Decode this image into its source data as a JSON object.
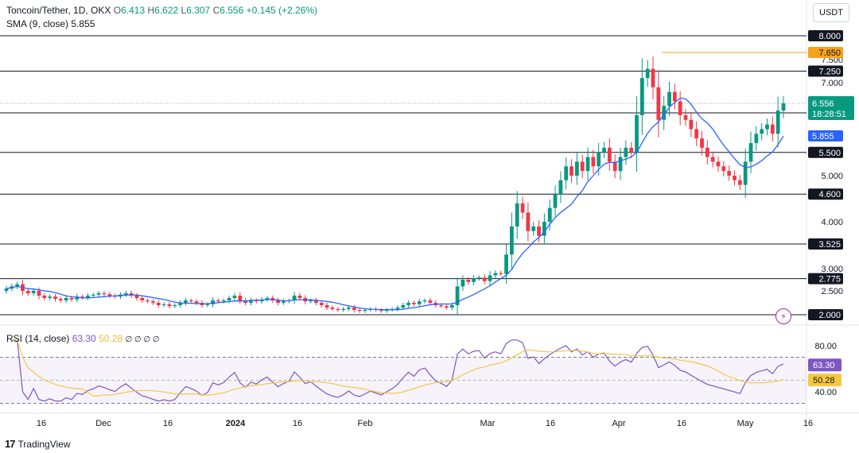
{
  "header": {
    "symbol": "Toncoin/Tether, 1D, OKX",
    "open_label": "O",
    "open": "6.413",
    "high_label": "H",
    "high": "6.622",
    "low_label": "L",
    "low": "6.307",
    "close_label": "C",
    "close": "6.556",
    "change": "+0.145 (+2.26%)",
    "sma_label": "SMA (9, close)",
    "sma_value": "5.855"
  },
  "currency_button": "USDT",
  "rsi_header": {
    "label": "RSI (14, close)",
    "rsi_value": "63.30",
    "ma_value": "50.28",
    "placeholders": "∅ ∅ ∅ ∅"
  },
  "brand": "TradingView",
  "colors": {
    "up": "#089981",
    "down": "#f23645",
    "sma": "#2962ff",
    "rsi": "#7e57c2",
    "rsi_ma": "#f5c842",
    "level_line": "#131722",
    "level_tag_bg": "#131722",
    "highlight_tag_bg": "#f7a21b",
    "price_tag_bg": "#089981"
  },
  "chart_data": [
    {
      "type": "candlestick",
      "title": "Toncoin/Tether, 1D, OKX",
      "y_axis_ticks": [
        "2.500",
        "3.000",
        "4.000",
        "5.000",
        "7.000",
        "7.500"
      ],
      "ylim": [
        1.9,
        8.5
      ],
      "x_ticks": [
        "16",
        "Dec",
        "16",
        "2024",
        "16",
        "Feb",
        "Mar",
        "16",
        "Apr",
        "16",
        "May",
        "16"
      ],
      "horizontal_levels": [
        {
          "label": "8.000",
          "value": 8.0,
          "style": "black"
        },
        {
          "label": "7.650",
          "value": 7.65,
          "style": "orange"
        },
        {
          "label": "7.250",
          "value": 7.25,
          "style": "black"
        },
        {
          "label": "6.350",
          "value": 6.35,
          "style": "black"
        },
        {
          "label": "5.500",
          "value": 5.5,
          "style": "black"
        },
        {
          "label": "4.600",
          "value": 4.6,
          "style": "black"
        },
        {
          "label": "3.525",
          "value": 3.525,
          "style": "black"
        },
        {
          "label": "2.775",
          "value": 2.775,
          "style": "black"
        },
        {
          "label": "2.000",
          "value": 2.0,
          "style": "black"
        }
      ],
      "current_price": {
        "value": 6.556,
        "label": "6.556",
        "countdown": "18:28:51"
      },
      "sma": {
        "name": "SMA (9, close)",
        "value": 5.855,
        "label": "5.855"
      },
      "close_series": [
        2.55,
        2.6,
        2.65,
        2.5,
        2.45,
        2.5,
        2.4,
        2.35,
        2.38,
        2.33,
        2.3,
        2.35,
        2.32,
        2.38,
        2.36,
        2.4,
        2.42,
        2.45,
        2.43,
        2.4,
        2.38,
        2.42,
        2.45,
        2.4,
        2.35,
        2.3,
        2.28,
        2.25,
        2.2,
        2.22,
        2.18,
        2.2,
        2.25,
        2.3,
        2.28,
        2.25,
        2.2,
        2.22,
        2.3,
        2.28,
        2.3,
        2.35,
        2.4,
        2.3,
        2.25,
        2.3,
        2.28,
        2.32,
        2.35,
        2.3,
        2.25,
        2.28,
        2.3,
        2.4,
        2.35,
        2.28,
        2.3,
        2.25,
        2.2,
        2.15,
        2.12,
        2.1,
        2.12,
        2.15,
        2.1,
        2.08,
        2.1,
        2.12,
        2.1,
        2.08,
        2.1,
        2.12,
        2.15,
        2.2,
        2.25,
        2.22,
        2.28,
        2.3,
        2.25,
        2.2,
        2.18,
        2.15,
        2.2,
        2.6,
        2.75,
        2.7,
        2.78,
        2.8,
        2.72,
        2.85,
        2.9,
        2.88,
        3.3,
        3.9,
        4.4,
        4.2,
        3.8,
        3.9,
        3.7,
        4.0,
        4.3,
        4.6,
        4.9,
        5.2,
        5.0,
        5.3,
        5.1,
        5.4,
        5.2,
        5.5,
        5.6,
        5.3,
        5.1,
        5.4,
        5.6,
        5.5,
        6.3,
        7.1,
        7.3,
        6.9,
        6.2,
        6.5,
        6.8,
        6.6,
        6.3,
        6.2,
        6.0,
        5.8,
        5.6,
        5.4,
        5.3,
        5.2,
        5.1,
        5.0,
        4.9,
        4.8,
        5.3,
        5.7,
        5.9,
        6.0,
        6.1,
        5.9,
        6.4,
        6.556
      ],
      "rsi": {
        "name": "RSI (14, close)",
        "value": 63.3,
        "ma_value": 50.28,
        "axis_ticks": [
          "80.00",
          "40.00"
        ],
        "bands": [
          70,
          30
        ],
        "ylim": [
          25,
          90
        ]
      }
    }
  ]
}
